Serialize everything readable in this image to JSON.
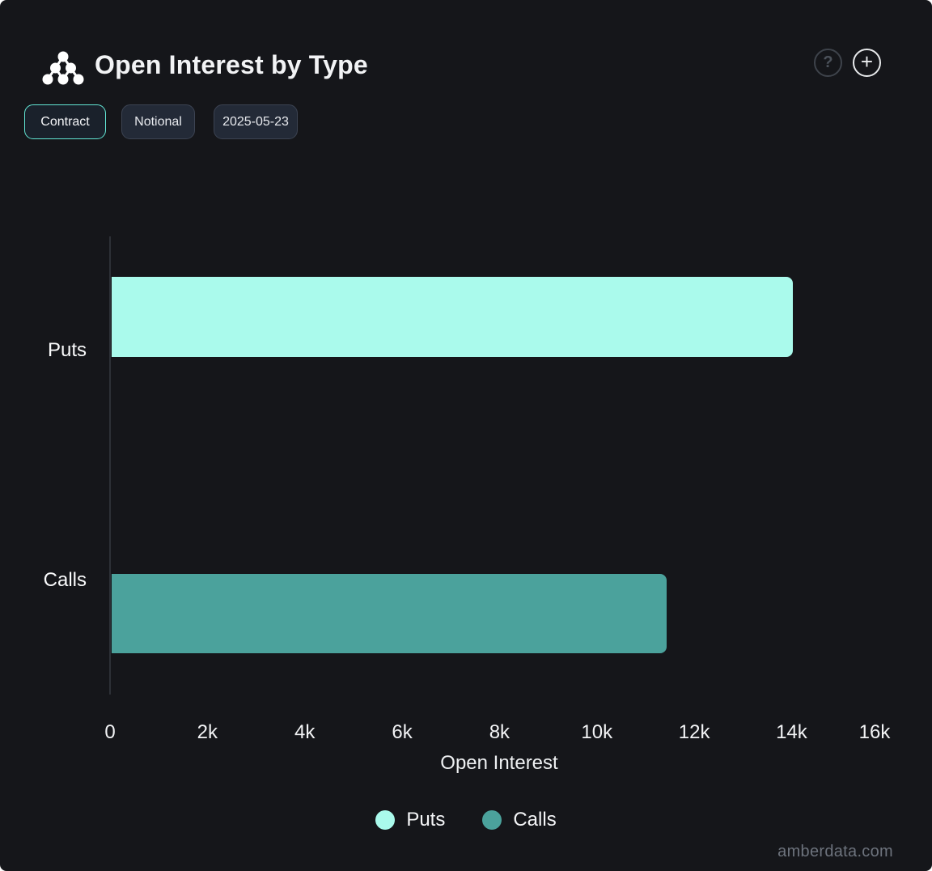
{
  "header": {
    "title": "Open Interest by Type",
    "help_label": "?",
    "add_label": "+"
  },
  "controls": {
    "contract": {
      "label": "Contract",
      "active": true
    },
    "notional": {
      "label": "Notional",
      "active": false
    },
    "date": {
      "label": "2025-05-23"
    }
  },
  "colors": {
    "background": "#15161a",
    "accent_border": "#62e6d4",
    "puts": "#aafaec",
    "calls": "#4ba29c"
  },
  "watermark": "amberdata.com",
  "chart_data": {
    "type": "bar",
    "orientation": "horizontal",
    "title": "Open Interest by Type",
    "categories": [
      "Puts",
      "Calls"
    ],
    "series": [
      {
        "name": "Puts",
        "value": 14000,
        "color": "#aafaec"
      },
      {
        "name": "Calls",
        "value": 11400,
        "color": "#4ba29c"
      }
    ],
    "xlabel": "Open Interest",
    "xlim": [
      0,
      16000
    ],
    "xticks": {
      "values": [
        0,
        2000,
        4000,
        6000,
        8000,
        10000,
        12000,
        14000,
        16000
      ],
      "labels": [
        "0",
        "2k",
        "4k",
        "6k",
        "8k",
        "10k",
        "12k",
        "14k",
        "16k"
      ]
    },
    "legend": {
      "position": "bottom",
      "items": [
        "Puts",
        "Calls"
      ]
    },
    "grid": false
  }
}
